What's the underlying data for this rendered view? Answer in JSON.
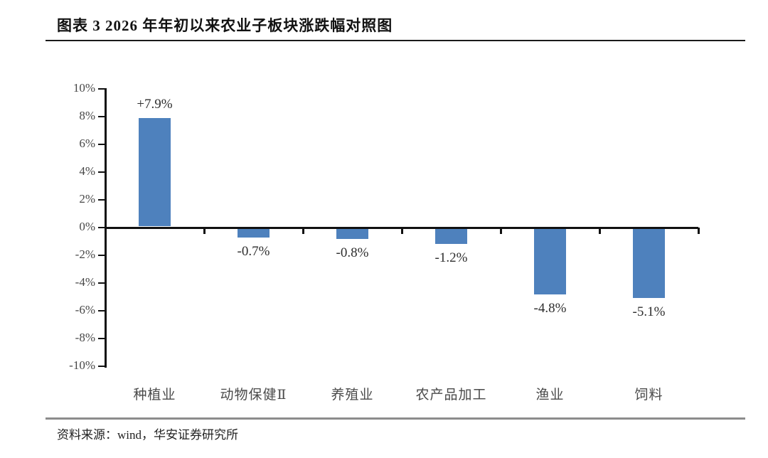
{
  "header": {
    "title": "图表 3 2026 年年初以来农业子板块涨跌幅对照图"
  },
  "chart_data": {
    "type": "bar",
    "title": "2026 年年初以来农业子板块涨跌幅对照图",
    "categories": [
      "种植业",
      "动物保健Ⅱ",
      "养殖业",
      "农产品加工",
      "渔业",
      "饲料"
    ],
    "values": [
      7.9,
      -0.7,
      -0.8,
      -1.2,
      -4.8,
      -5.1
    ],
    "value_labels": [
      "+7.9%",
      "-0.7%",
      "-0.8%",
      "-1.2%",
      "-4.8%",
      "-5.1%"
    ],
    "series": [
      {
        "name": "涨跌幅",
        "values": [
          7.9,
          -0.7,
          -0.8,
          -1.2,
          -4.8,
          -5.1
        ]
      }
    ],
    "ylim": [
      -10,
      10
    ],
    "y_tick_step": 2,
    "y_ticks": [
      {
        "value": 10,
        "label": "10%"
      },
      {
        "value": 8,
        "label": "8%"
      },
      {
        "value": 6,
        "label": "6%"
      },
      {
        "value": 4,
        "label": "4%"
      },
      {
        "value": 2,
        "label": "2%"
      },
      {
        "value": 0,
        "label": "0%"
      },
      {
        "value": -2,
        "label": "-2%"
      },
      {
        "value": -4,
        "label": "-4%"
      },
      {
        "value": -6,
        "label": "-6%"
      },
      {
        "value": -8,
        "label": "-8%"
      },
      {
        "value": -10,
        "label": "-10%"
      }
    ],
    "bar_color": "#4E81BD",
    "grid": false,
    "legend": "none",
    "xlabel": "",
    "ylabel": ""
  },
  "footer": {
    "source": "资料来源：wind，华安证券研究所"
  }
}
